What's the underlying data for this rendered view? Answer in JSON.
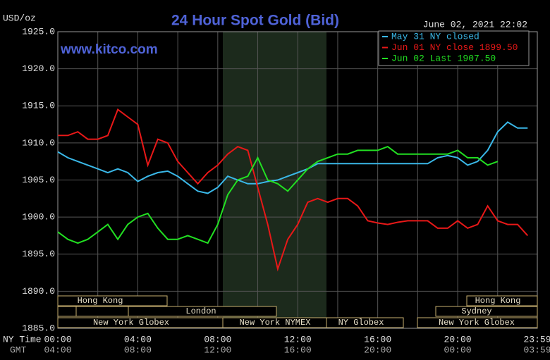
{
  "chart_data": {
    "type": "line",
    "title": "24 Hour Spot Gold (Bid)",
    "unit_label": "USD/oz",
    "timestamp": "June 02, 2021 22:02",
    "watermark": "www.kitco.com",
    "x_axis_label": "NY Time",
    "x2_axis_label": "GMT",
    "x": [
      0,
      0.5,
      1,
      1.5,
      2,
      2.5,
      3,
      3.5,
      4,
      4.5,
      5,
      5.5,
      6,
      6.5,
      7,
      7.5,
      8,
      8.5,
      9,
      9.5,
      10,
      10.5,
      11,
      11.5,
      12,
      12.5,
      13,
      13.5,
      14,
      14.5,
      15,
      15.5,
      16,
      16.5,
      17,
      17.5,
      18,
      18.5,
      19,
      19.5,
      20,
      20.5,
      21,
      21.5,
      22,
      22.5,
      23,
      23.5
    ],
    "series": [
      {
        "name": "May 31 NY closed",
        "color": "#3ab8e8",
        "values": [
          1908.8,
          1908,
          1907.5,
          1907,
          1906.5,
          1906,
          1906.5,
          1906,
          1904.8,
          1905.5,
          1906,
          1906.2,
          1905.5,
          1904.5,
          1903.5,
          1903.2,
          1904,
          1905.5,
          1905,
          1904.5,
          1904.5,
          1904.8,
          1905,
          1905.5,
          1906,
          1906.5,
          1907.2,
          1907.2,
          1907.2,
          1907.2,
          1907.2,
          1907.2,
          1907.2,
          1907.2,
          1907.2,
          1907.2,
          1907.2,
          1907.2,
          1908,
          1908.3,
          1908,
          1907,
          1907.5,
          1909,
          1911.5,
          1912.8,
          1912,
          1912
        ]
      },
      {
        "name": "Jun 01 NY close 1899.50",
        "color": "#e81818",
        "values": [
          1911,
          1911,
          1911.5,
          1910.5,
          1910.5,
          1911,
          1914.5,
          1913.5,
          1912.5,
          1907,
          1910.5,
          1910,
          1907.5,
          1906,
          1904.5,
          1906,
          1907,
          1908.5,
          1909.5,
          1909,
          1904,
          1899,
          1893,
          1897,
          1899,
          1902,
          1902.5,
          1902,
          1902.5,
          1902.5,
          1901.5,
          1899.5,
          1899.2,
          1899,
          1899.3,
          1899.5,
          1899.5,
          1899.5,
          1898.5,
          1898.5,
          1899.5,
          1898.5,
          1899,
          1901.5,
          1899.5,
          1899,
          1899,
          1897.5
        ]
      },
      {
        "name": "Jun 02 Last 1907.50",
        "color": "#22e022",
        "values": [
          1898,
          1897,
          1896.5,
          1897,
          1898,
          1899,
          1897,
          1899,
          1900,
          1900.5,
          1898.5,
          1897,
          1897,
          1897.5,
          1897,
          1896.5,
          1899,
          1903,
          1905,
          1905.5,
          1908,
          1905,
          1904.5,
          1903.5,
          1905,
          1906.5,
          1907.5,
          1908,
          1908.5,
          1908.5,
          1909,
          1909,
          1909,
          1909.5,
          1908.5,
          1908.5,
          1908.5,
          1908.5,
          1908.5,
          1908.5,
          1909,
          1908,
          1908,
          1907,
          1907.5,
          null,
          null,
          null
        ]
      }
    ],
    "xlim": [
      0,
      23.983
    ],
    "xticks": [
      {
        "value": 0,
        "label": "00:00"
      },
      {
        "value": 4,
        "label": "04:00"
      },
      {
        "value": 8,
        "label": "08:00"
      },
      {
        "value": 12,
        "label": "12:00"
      },
      {
        "value": 16,
        "label": "16:00"
      },
      {
        "value": 20,
        "label": "20:00"
      },
      {
        "value": 23.983,
        "label": "23:59"
      }
    ],
    "x2tick_labels": [
      "04:00",
      "08:00",
      "12:00",
      "16:00",
      "20:00",
      "00:00",
      "03:59"
    ],
    "ylim": [
      1885,
      1925
    ],
    "yticks": [
      {
        "value": 1885,
        "label": "1885.0"
      },
      {
        "value": 1890,
        "label": "1890.0"
      },
      {
        "value": 1895,
        "label": "1895.0"
      },
      {
        "value": 1900,
        "label": "1900.0"
      },
      {
        "value": 1905,
        "label": "1905.0"
      },
      {
        "value": 1910,
        "label": "1910.0"
      },
      {
        "value": 1915,
        "label": "1915.0"
      },
      {
        "value": 1920,
        "label": "1920.0"
      },
      {
        "value": 1925,
        "label": "1925.0"
      }
    ],
    "grid": true,
    "legend_position": "upper right",
    "sessions": [
      "Hong Kong",
      "London",
      "New York Globex",
      "New York NYMEX",
      "NY Globex",
      "Hong Kong",
      "Sydney",
      "New York Globex"
    ]
  }
}
